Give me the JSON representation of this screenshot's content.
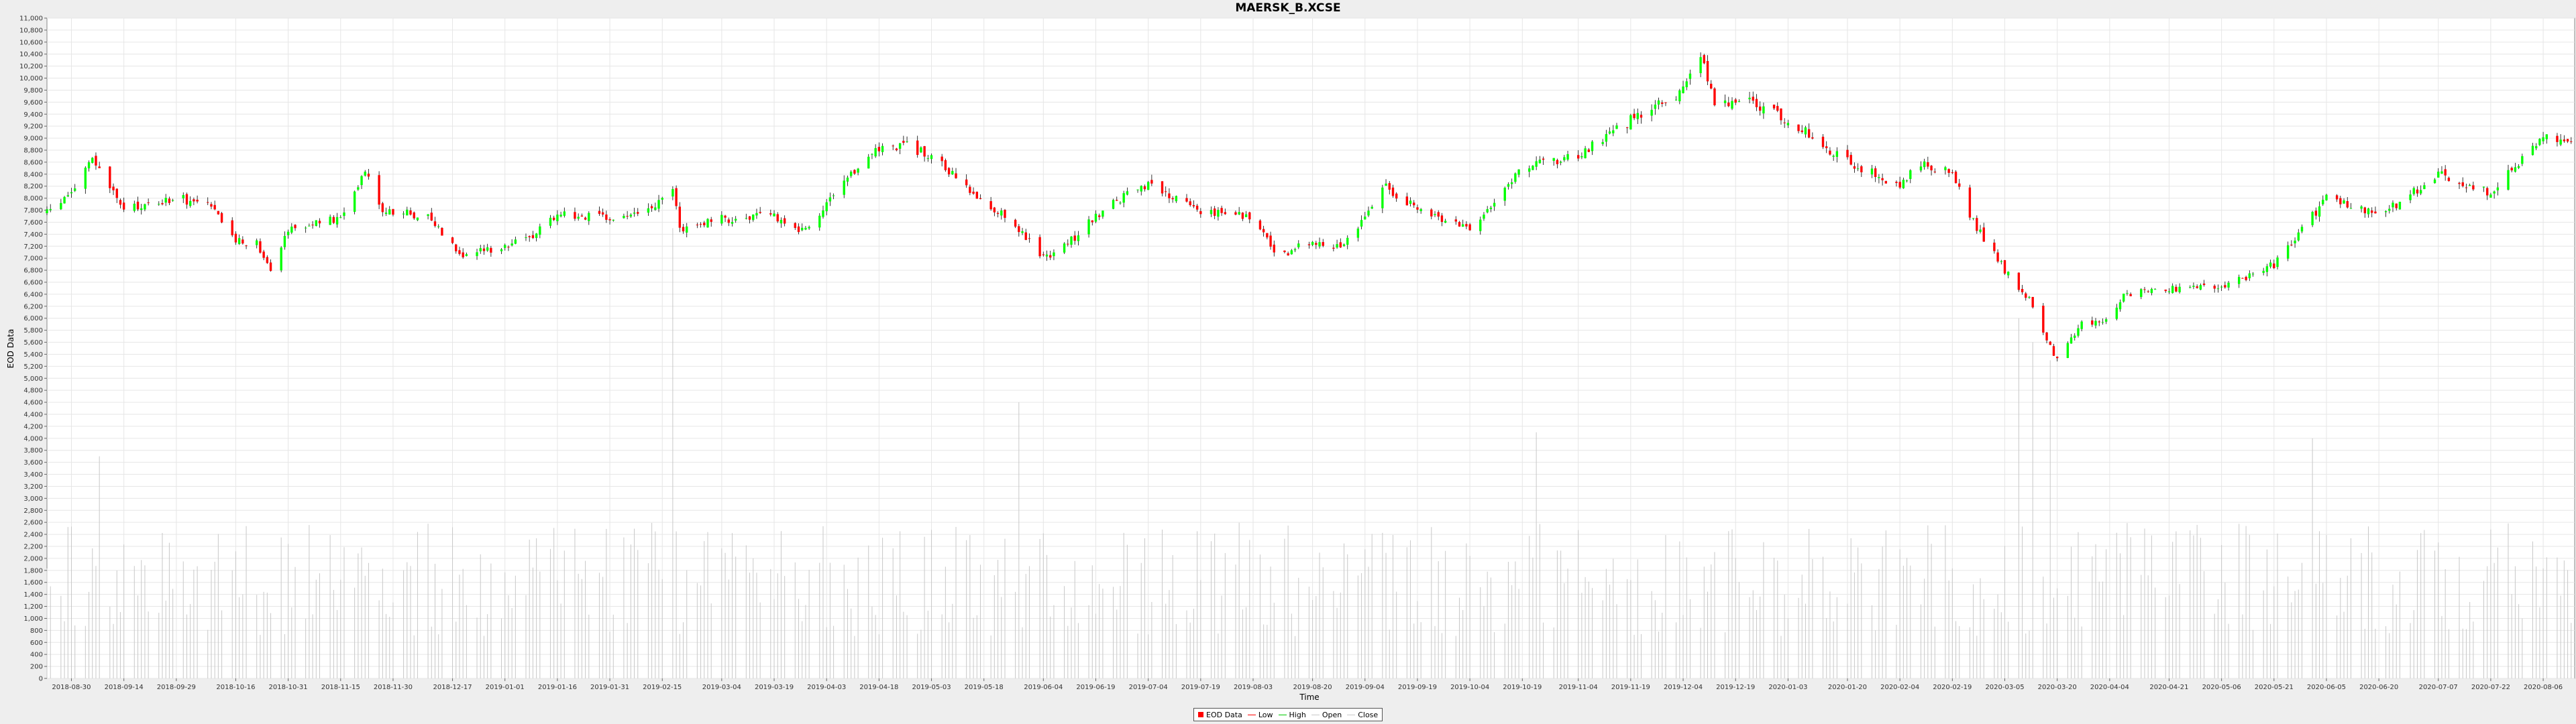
{
  "chart_data": {
    "type": "candlestick",
    "title": "MAERSK_B.XCSE",
    "xlabel": "Time",
    "ylabel": "EOD Data",
    "ylim": [
      0,
      11000
    ],
    "y_ticks": [
      0,
      200,
      400,
      600,
      800,
      1000,
      1200,
      1400,
      1600,
      1800,
      2000,
      2200,
      2400,
      2600,
      2800,
      3000,
      3200,
      3400,
      3600,
      3800,
      4000,
      4200,
      4400,
      4600,
      4800,
      5000,
      5200,
      5400,
      5600,
      5800,
      6000,
      6200,
      6400,
      6600,
      6800,
      7000,
      7200,
      7400,
      7600,
      7800,
      8000,
      8200,
      8400,
      8600,
      8800,
      9000,
      9200,
      9400,
      9600,
      9800,
      10000,
      10200,
      10400,
      10600,
      10800,
      11000
    ],
    "x_range": [
      "2018-08-23",
      "2020-08-15"
    ],
    "x_tick_labels": [
      "2018-08-30",
      "2018-09-14",
      "2018-09-29",
      "2018-10-16",
      "2018-10-31",
      "2018-11-15",
      "2018-11-30",
      "2018-12-17",
      "2019-01-01",
      "2019-01-16",
      "2019-01-31",
      "2019-02-15",
      "2019-03-04",
      "2019-03-19",
      "2019-04-03",
      "2019-04-18",
      "2019-05-03",
      "2019-05-18",
      "2019-06-04",
      "2019-06-19",
      "2019-07-04",
      "2019-07-19",
      "2019-08-03",
      "2019-08-20",
      "2019-09-04",
      "2019-09-19",
      "2019-10-04",
      "2019-10-19",
      "2019-11-04",
      "2019-11-19",
      "2019-12-04",
      "2019-12-19",
      "2020-01-03",
      "2020-01-20",
      "2020-02-04",
      "2020-02-19",
      "2020-03-05",
      "2020-03-20",
      "2020-04-04",
      "2020-04-21",
      "2020-05-06",
      "2020-05-21",
      "2020-06-05",
      "2020-06-20",
      "2020-07-07",
      "2020-07-22",
      "2020-08-06"
    ],
    "grid": true,
    "legend_position": "bottom-center",
    "legend": [
      "EOD Data",
      "Low",
      "High",
      "Open",
      "Close"
    ],
    "colors": {
      "up": "#00ff00",
      "down": "#ff0000",
      "wick": "#000000",
      "volume": "#c8c8c8",
      "grid": "#e6e6e6",
      "plot_bg": "#ffffff",
      "low": "#ff0000",
      "high": "#00ff00",
      "open": "#c8c8c8",
      "close": "#c8c8c8"
    },
    "close_anchors": [
      [
        "2018-08-23",
        7750
      ],
      [
        "2018-08-30",
        8100
      ],
      [
        "2018-09-05",
        8650
      ],
      [
        "2018-09-14",
        7800
      ],
      [
        "2018-09-29",
        8000
      ],
      [
        "2018-10-08",
        7900
      ],
      [
        "2018-10-16",
        7300
      ],
      [
        "2018-10-22",
        7250
      ],
      [
        "2018-10-26",
        6850
      ],
      [
        "2018-10-31",
        7500
      ],
      [
        "2018-11-15",
        7650
      ],
      [
        "2018-11-22",
        8500
      ],
      [
        "2018-11-27",
        7800
      ],
      [
        "2018-12-10",
        7700
      ],
      [
        "2018-12-20",
        7050
      ],
      [
        "2019-01-07",
        7300
      ],
      [
        "2019-01-16",
        7750
      ],
      [
        "2019-01-31",
        7650
      ],
      [
        "2019-02-12",
        7800
      ],
      [
        "2019-02-18",
        8150
      ],
      [
        "2019-02-20",
        7500
      ],
      [
        "2019-03-04",
        7650
      ],
      [
        "2019-03-19",
        7700
      ],
      [
        "2019-03-27",
        7450
      ],
      [
        "2019-04-05",
        8000
      ],
      [
        "2019-04-16",
        8800
      ],
      [
        "2019-04-25",
        8900
      ],
      [
        "2019-05-03",
        8700
      ],
      [
        "2019-05-18",
        7900
      ],
      [
        "2019-05-25",
        7700
      ],
      [
        "2019-06-04",
        7000
      ],
      [
        "2019-06-12",
        7300
      ],
      [
        "2019-06-19",
        7700
      ],
      [
        "2019-06-26",
        8000
      ],
      [
        "2019-07-04",
        8200
      ],
      [
        "2019-07-19",
        7800
      ],
      [
        "2019-08-03",
        7700
      ],
      [
        "2019-08-10",
        7000
      ],
      [
        "2019-08-20",
        7300
      ],
      [
        "2019-08-28",
        7200
      ],
      [
        "2019-09-04",
        7700
      ],
      [
        "2019-09-10",
        8200
      ],
      [
        "2019-09-19",
        7800
      ],
      [
        "2019-10-04",
        7500
      ],
      [
        "2019-10-19",
        8500
      ],
      [
        "2019-11-04",
        8700
      ],
      [
        "2019-11-19",
        9300
      ],
      [
        "2019-12-04",
        9800
      ],
      [
        "2019-12-09",
        10400
      ],
      [
        "2019-12-13",
        9600
      ],
      [
        "2019-12-23",
        9600
      ],
      [
        "2020-01-03",
        9300
      ],
      [
        "2020-01-20",
        8600
      ],
      [
        "2020-02-04",
        8200
      ],
      [
        "2020-02-10",
        8600
      ],
      [
        "2020-02-19",
        8400
      ],
      [
        "2020-02-24",
        7700
      ],
      [
        "2020-03-05",
        6800
      ],
      [
        "2020-03-12",
        6300
      ],
      [
        "2020-03-20",
        5300
      ],
      [
        "2020-03-27",
        5900
      ],
      [
        "2020-04-04",
        6000
      ],
      [
        "2020-04-08",
        6400
      ],
      [
        "2020-04-21",
        6500
      ],
      [
        "2020-05-06",
        6500
      ],
      [
        "2020-05-21",
        6900
      ],
      [
        "2020-06-05",
        8000
      ],
      [
        "2020-06-20",
        7700
      ],
      [
        "2020-07-07",
        8400
      ],
      [
        "2020-07-22",
        8100
      ],
      [
        "2020-08-06",
        9000
      ],
      [
        "2020-08-15",
        9000
      ]
    ],
    "volume_range": [
      700,
      2600
    ],
    "volume_spikes": [
      [
        "2018-09-07",
        3700
      ],
      [
        "2019-02-18",
        7500
      ],
      [
        "2019-03-30",
        3800
      ],
      [
        "2019-05-28",
        4600
      ],
      [
        "2019-10-23",
        4100
      ],
      [
        "2019-12-07",
        3600
      ],
      [
        "2020-03-01",
        5400
      ],
      [
        "2020-03-09",
        6000
      ],
      [
        "2020-03-13",
        5600
      ],
      [
        "2020-03-18",
        5300
      ],
      [
        "2020-06-01",
        4000
      ]
    ]
  }
}
